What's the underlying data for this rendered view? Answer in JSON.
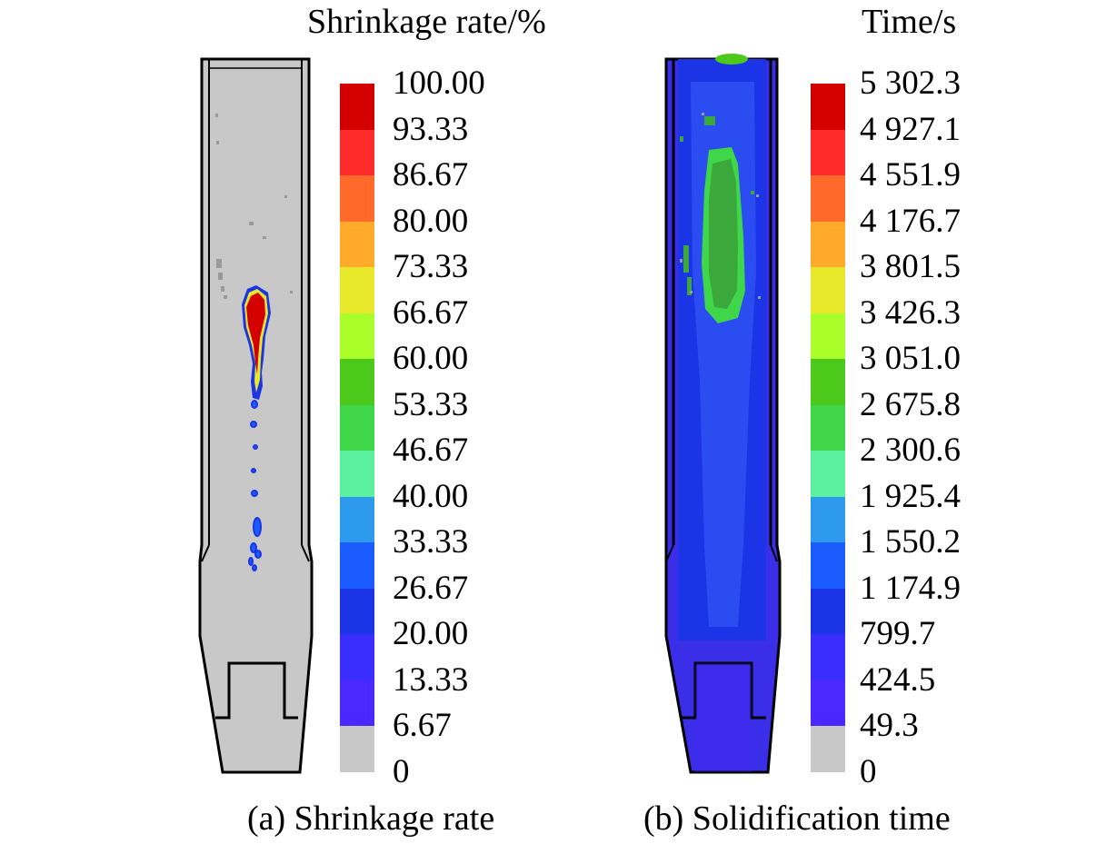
{
  "panel_a": {
    "title": "Shrinkage rate/%",
    "caption": "(a) Shrinkage rate",
    "legend": {
      "labels": [
        "100.00",
        "93.33",
        "86.67",
        "80.00",
        "73.33",
        "66.67",
        "60.00",
        "53.33",
        "46.67",
        "40.00",
        "33.33",
        "26.67",
        "20.00",
        "13.33",
        "6.67",
        "0"
      ]
    }
  },
  "panel_b": {
    "title": "Time/s",
    "caption": "(b) Solidification time",
    "legend": {
      "labels": [
        "5 302.3",
        "4 927.1",
        "4 551.9",
        "4 176.7",
        "3 801.5",
        "3 426.3",
        "3 051.0",
        "2 675.8",
        "2 300.6",
        "1 925.4",
        "1 550.2",
        "1 174.9",
        "799.7",
        "424.5",
        "49.3",
        "0"
      ]
    }
  },
  "colors": {
    "scale": [
      "#d40000",
      "#ff2b2b",
      "#ff6a2a",
      "#ffaa2a",
      "#e8e82a",
      "#aaff2a",
      "#4cc91a",
      "#3fd64a",
      "#5af0a0",
      "#2d9aee",
      "#1a5cff",
      "#1a34e6",
      "#3a2dff",
      "#4a28ff",
      "#c8c8c8"
    ],
    "casting_gray": "#c8c8c8",
    "casting_blue": "#3a2ee8"
  }
}
